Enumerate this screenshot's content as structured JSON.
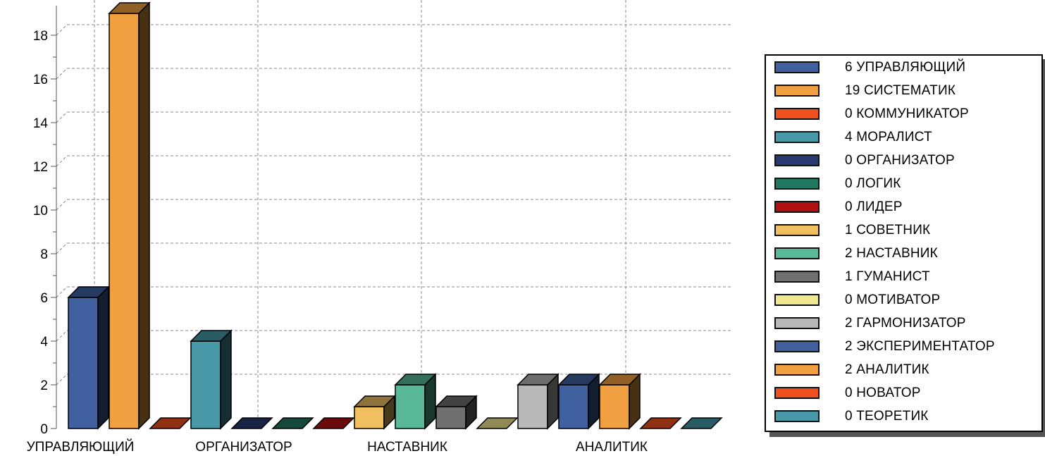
{
  "chart_data": {
    "type": "bar",
    "ylim": [
      0,
      18
    ],
    "yticks": [
      "0",
      "2",
      "4",
      "6",
      "8",
      "10",
      "12",
      "14",
      "16",
      "18"
    ],
    "grid": true,
    "legend_position": "right",
    "x_group_labels": [
      "УПРАВЛЯЮЩИЙ",
      "ОРГАНИЗАТОР",
      "НАСТАВНИК",
      "АНАЛИТИК"
    ],
    "series": [
      {
        "name": "УПРАВЛЯЮЩИЙ",
        "value": 6,
        "color": "#4060a0",
        "legend": "6 УПРАВЛЯЮЩИЙ"
      },
      {
        "name": "СИСТЕМАТИК",
        "value": 19,
        "color": "#f0a040",
        "legend": "19 СИСТЕМАТИК"
      },
      {
        "name": "КОММУНИКАТОР",
        "value": 0,
        "color": "#f05020",
        "legend": "0 КОММУНИКАТОР"
      },
      {
        "name": "МОРАЛИСТ",
        "value": 4,
        "color": "#4898a8",
        "legend": "4 МОРАЛИСТ"
      },
      {
        "name": "ОРГАНИЗАТОР",
        "value": 0,
        "color": "#283870",
        "legend": "0 ОРГАНИЗАТОР"
      },
      {
        "name": "ЛОГИК",
        "value": 0,
        "color": "#207860",
        "legend": "0 ЛОГИК"
      },
      {
        "name": "ЛИДЕР",
        "value": 0,
        "color": "#b01010",
        "legend": "0 ЛИДЕР"
      },
      {
        "name": "СОВЕТНИК",
        "value": 1,
        "color": "#f0c060",
        "legend": "1 СОВЕТНИК"
      },
      {
        "name": "НАСТАВНИК",
        "value": 2,
        "color": "#58b898",
        "legend": "2 НАСТАВНИК"
      },
      {
        "name": "ГУМАНИСТ",
        "value": 1,
        "color": "#707070",
        "legend": "1 ГУМАНИСТ"
      },
      {
        "name": "МОТИВАТОР",
        "value": 0,
        "color": "#f0e890",
        "legend": "0 МОТИВАТОР"
      },
      {
        "name": "ГАРМОНИЗАТОР",
        "value": 2,
        "color": "#b8b8b8",
        "legend": "2 ГАРМОНИЗАТОР"
      },
      {
        "name": "ЭКСПЕРИМЕНТАТОР",
        "value": 2,
        "color": "#4060a0",
        "legend": "2 ЭКСПЕРИМЕНТАТОР"
      },
      {
        "name": "АНАЛИТИК",
        "value": 2,
        "color": "#f0a040",
        "legend": "2 АНАЛИТИК"
      },
      {
        "name": "НОВАТОР",
        "value": 0,
        "color": "#f05020",
        "legend": "0 НОВАТОР"
      },
      {
        "name": "ТЕОРЕТИК",
        "value": 0,
        "color": "#4898a8",
        "legend": "0 ТЕОРЕТИК"
      }
    ]
  }
}
